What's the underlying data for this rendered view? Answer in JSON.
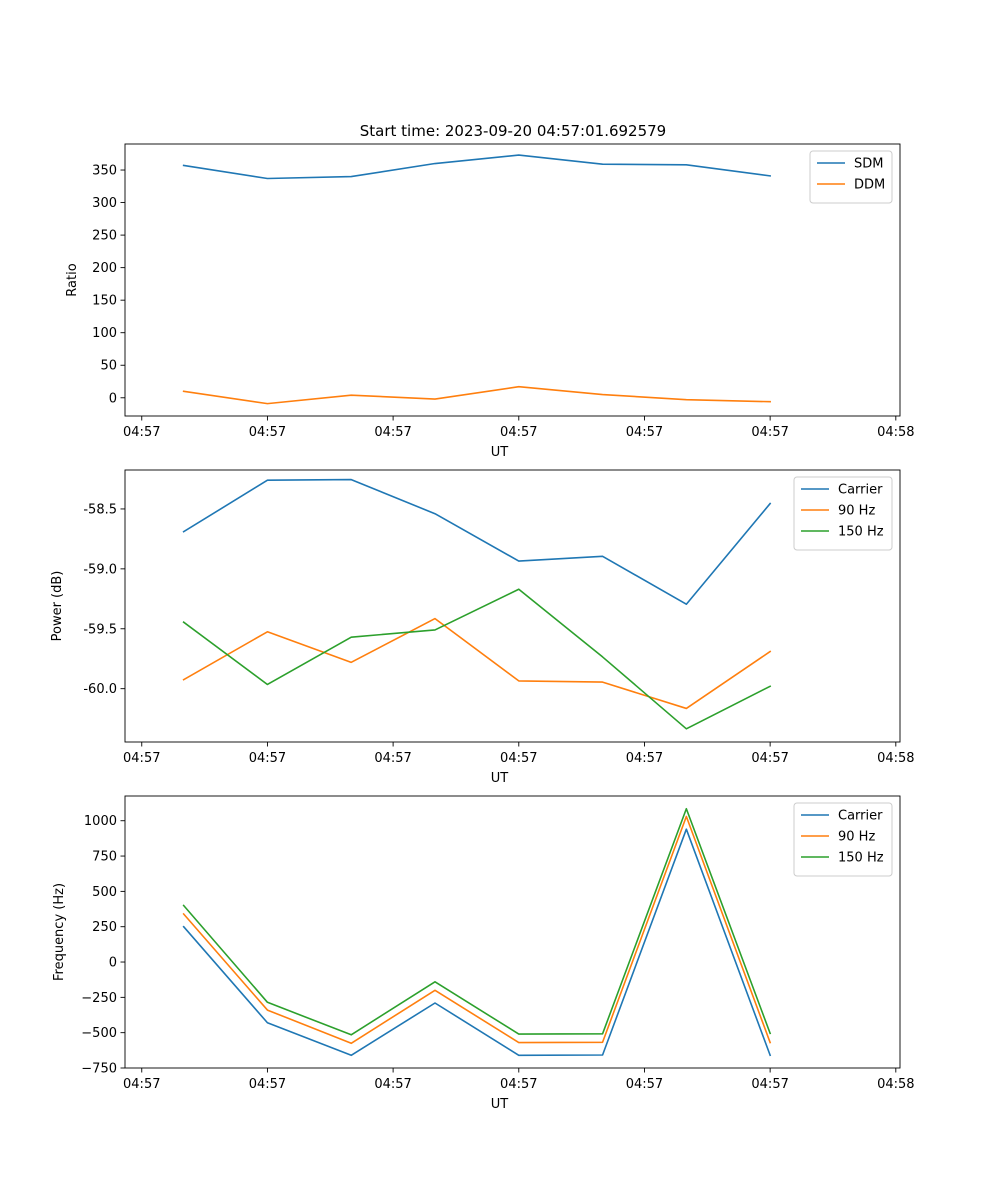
{
  "figure_title": "Start time: 2023-09-20 04:57:01.692579",
  "chart_data": [
    {
      "type": "line",
      "title": "Start time: 2023-09-20 04:57:01.692579",
      "xlabel": "UT",
      "ylabel": "Ratio",
      "x": [
        1,
        2,
        3,
        4,
        5,
        6,
        7,
        8
      ],
      "xlim": [
        0.3,
        9.55
      ],
      "xtick_positions": [
        0.5,
        2.0,
        3.5,
        5.0,
        6.5,
        8.0,
        9.5
      ],
      "xtick_labels": [
        "04:57",
        "04:57",
        "04:57",
        "04:57",
        "04:57",
        "04:57",
        "04:58"
      ],
      "ylim": [
        -28,
        390
      ],
      "yticks": [
        0,
        50,
        100,
        150,
        200,
        250,
        300,
        350
      ],
      "ytick_labels": [
        "0",
        "50",
        "100",
        "150",
        "200",
        "250",
        "300",
        "350"
      ],
      "legend_position": "top-right",
      "series": [
        {
          "name": "SDM",
          "color": "#1f77b4",
          "values": [
            357,
            337,
            340,
            360,
            373,
            359,
            358,
            341
          ]
        },
        {
          "name": "DDM",
          "color": "#ff7f0e",
          "values": [
            10,
            -9,
            4,
            -2,
            17,
            5,
            -3,
            -6
          ]
        }
      ]
    },
    {
      "type": "line",
      "title": "",
      "xlabel": "UT",
      "ylabel": "Power (dB)",
      "x": [
        1,
        2,
        3,
        4,
        5,
        6,
        7,
        8
      ],
      "xlim": [
        0.3,
        9.55
      ],
      "xtick_positions": [
        0.5,
        2.0,
        3.5,
        5.0,
        6.5,
        8.0,
        9.5
      ],
      "xtick_labels": [
        "04:57",
        "04:57",
        "04:57",
        "04:57",
        "04:57",
        "04:57",
        "04:58"
      ],
      "ylim": [
        -60.445,
        -58.175
      ],
      "yticks": [
        -60.0,
        -59.5,
        -59.0,
        -58.5
      ],
      "ytick_labels": [
        "-60.0",
        "-59.5",
        "-59.0",
        "-58.5"
      ],
      "legend_position": "top-right",
      "series": [
        {
          "name": "Carrier",
          "color": "#1f77b4",
          "values": [
            -58.69,
            -58.26,
            -58.255,
            -58.54,
            -58.935,
            -58.895,
            -59.295,
            -58.455
          ]
        },
        {
          "name": "90 Hz",
          "color": "#ff7f0e",
          "values": [
            -59.925,
            -59.525,
            -59.78,
            -59.415,
            -59.935,
            -59.945,
            -60.165,
            -59.69
          ]
        },
        {
          "name": "150 Hz",
          "color": "#2ca02c",
          "values": [
            -59.445,
            -59.965,
            -59.57,
            -59.51,
            -59.17,
            -59.735,
            -60.335,
            -59.98
          ]
        }
      ]
    },
    {
      "type": "line",
      "title": "",
      "xlabel": "UT",
      "ylabel": "Frequency (Hz)",
      "x": [
        1,
        2,
        3,
        4,
        5,
        6,
        7,
        8
      ],
      "xlim": [
        0.3,
        9.55
      ],
      "xtick_positions": [
        0.5,
        2.0,
        3.5,
        5.0,
        6.5,
        8.0,
        9.5
      ],
      "xtick_labels": [
        "04:57",
        "04:57",
        "04:57",
        "04:57",
        "04:57",
        "04:57",
        "04:58"
      ],
      "ylim": [
        -750,
        1175
      ],
      "yticks": [
        -750,
        -500,
        -250,
        0,
        250,
        500,
        750,
        1000
      ],
      "ytick_labels": [
        "−750",
        "−500",
        "−250",
        "0",
        "250",
        "500",
        "750",
        "1000"
      ],
      "legend_position": "top-right",
      "series": [
        {
          "name": "Carrier",
          "color": "#1f77b4",
          "values": [
            250,
            -430,
            -660,
            -290,
            -660,
            -658,
            940,
            -660
          ]
        },
        {
          "name": "90 Hz",
          "color": "#ff7f0e",
          "values": [
            340,
            -340,
            -575,
            -200,
            -570,
            -568,
            1030,
            -570
          ]
        },
        {
          "name": "150 Hz",
          "color": "#2ca02c",
          "values": [
            400,
            -285,
            -515,
            -140,
            -510,
            -508,
            1085,
            -505
          ]
        }
      ]
    }
  ]
}
